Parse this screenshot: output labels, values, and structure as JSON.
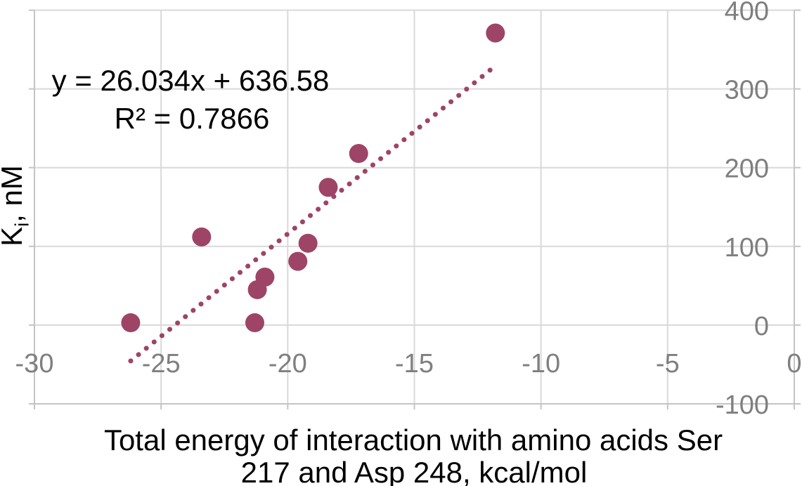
{
  "figure": {
    "equation_line1": "y = 26.034x + 636.58",
    "equation_line2": "R² = 0.7866",
    "y_axis_title": {
      "main": "K",
      "sub": "i",
      "rest": ", nM"
    },
    "x_axis_title_line1": "Total energy of interaction with amino acids Ser",
    "x_axis_title_line2": "217 and Asp 248, kcal/mol"
  },
  "chart_data": {
    "type": "scatter",
    "title": "",
    "xlabel": "Total energy of interaction with amino acids Ser 217 and Asp 248, kcal/mol",
    "ylabel": "Ki, nM",
    "xlim": [
      -30,
      0
    ],
    "ylim": [
      -100,
      400
    ],
    "x_ticks": [
      -30,
      -25,
      -20,
      -15,
      -10,
      -5,
      0
    ],
    "y_ticks": [
      400,
      300,
      200,
      100,
      0,
      -100
    ],
    "grid": true,
    "legend": "none",
    "y_axis_labels_position": "right",
    "points": [
      {
        "x": -26.2,
        "y": 3
      },
      {
        "x": -23.4,
        "y": 112
      },
      {
        "x": -21.3,
        "y": 3
      },
      {
        "x": -21.2,
        "y": 45
      },
      {
        "x": -20.9,
        "y": 61
      },
      {
        "x": -19.6,
        "y": 81
      },
      {
        "x": -19.2,
        "y": 104
      },
      {
        "x": -18.4,
        "y": 175
      },
      {
        "x": -17.2,
        "y": 218
      },
      {
        "x": -11.8,
        "y": 371
      }
    ],
    "trendline": {
      "style": "dotted",
      "slope": 26.034,
      "intercept": 636.58,
      "x_start": -26.2,
      "x_end": -11.95,
      "equation_label": "y = 26.034x + 636.58",
      "r_squared_label": "R² = 0.7866"
    },
    "colors": {
      "point": "#9e4466",
      "trend": "#9e4466",
      "gridline": "#d9d9d9",
      "axis_line": "#c4c4c4",
      "tick_label": "#7f7f7f",
      "text": "#000000"
    }
  }
}
